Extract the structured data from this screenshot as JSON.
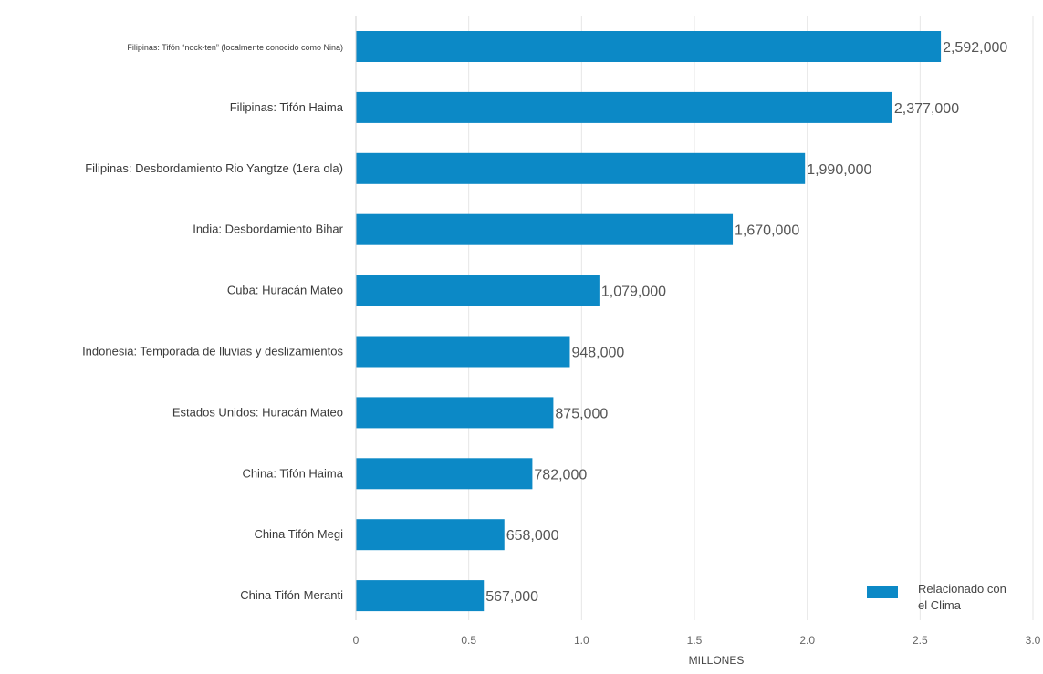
{
  "chart_data": {
    "type": "bar",
    "orientation": "horizontal",
    "title": "",
    "xlabel": "MILLONES",
    "ylabel": "",
    "xlim": [
      0,
      3.0
    ],
    "x_ticks": [
      0,
      0.5,
      1.0,
      1.5,
      2.0,
      2.5,
      3.0
    ],
    "x_tick_labels": [
      "0",
      "0.5",
      "1.0",
      "1.5",
      "2.0",
      "2.5",
      "3.0"
    ],
    "grid": "vertical",
    "legend_position": "bottom-right",
    "categories": [
      "Filipinas: Tifón “nock-ten” (localmente conocido como Nina)",
      "Filipinas: Tifón Haima",
      "Filipinas: Desbordamiento Rio Yangtze (1era ola)",
      "India: Desbordamiento Bihar",
      "Cuba: Huracán Mateo",
      "Indonesia: Temporada de lluvias y deslizamientos",
      "Estados Unidos: Huracán Mateo",
      "China: Tifón Haima",
      "China Tifón Megi",
      "China Tifón Meranti"
    ],
    "series": [
      {
        "name": "Relacionado con el Clima",
        "legend_lines": [
          "Relacionado con",
          "el Clima"
        ],
        "color": "#0c89c6",
        "values": [
          2.592,
          2.377,
          1.99,
          1.67,
          1.079,
          0.948,
          0.875,
          0.782,
          0.658,
          0.567
        ],
        "data_labels": [
          "2,592,000",
          "2,377,000",
          "1,990,000",
          "1,670,000",
          "1,079,000",
          "948,000",
          "875,000",
          "782,000",
          "658,000",
          "567,000"
        ]
      }
    ]
  }
}
